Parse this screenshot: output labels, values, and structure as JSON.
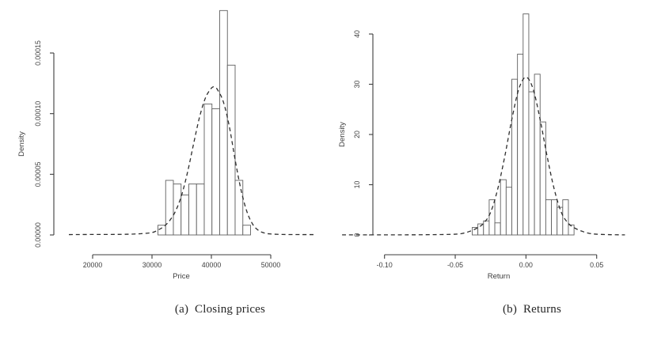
{
  "page": {
    "background": "#ffffff",
    "ink": "#3d3d3d"
  },
  "figure": {
    "caption_a": "(a)  Closing prices",
    "caption_b": "(b)  Returns"
  },
  "chart_data": [
    {
      "id": "closing-prices",
      "type": "bar",
      "subtype": "histogram-with-density-curve",
      "title": "",
      "xlabel": "Price",
      "ylabel": "Density",
      "xlim": [
        16000,
        57300
      ],
      "ylim": [
        0,
        0.00015
      ],
      "x_ticks": [
        20000,
        30000,
        40000,
        50000
      ],
      "x_tick_labels": [
        "20000",
        "30000",
        "40000",
        "50000"
      ],
      "y_ticks": [
        0,
        5e-05,
        0.0001,
        0.00015
      ],
      "y_tick_labels": [
        "0.00000",
        "0.00005",
        "0.00010",
        "0.00015"
      ],
      "grid": false,
      "legend": null,
      "histogram": {
        "bin_edges": [
          31000,
          32300,
          33600,
          34900,
          36200,
          37500,
          38800,
          40100,
          41400,
          42700,
          44000,
          45300,
          46600
        ],
        "densities": [
          8e-06,
          4.5e-05,
          4.2e-05,
          3.3e-05,
          4.2e-05,
          4.2e-05,
          0.000108,
          0.000104,
          0.000185,
          0.00014,
          4.5e-05,
          8e-06
        ],
        "bar_fill": "#ffffff",
        "bar_stroke": "#606060"
      },
      "density_curve": {
        "style": "dashed",
        "color": "#2e2e2e",
        "x": [
          16000,
          20000,
          25000,
          28000,
          30000,
          31000,
          32000,
          33000,
          34000,
          35000,
          36000,
          37000,
          38000,
          39000,
          40000,
          40500,
          41000,
          42000,
          43000,
          44000,
          45000,
          46000,
          47000,
          48000,
          49000,
          50000,
          52000,
          55000,
          57300
        ],
        "y": [
          3e-07,
          4e-07,
          5e-07,
          1e-06,
          2e-06,
          4e-06,
          7e-06,
          1.2e-05,
          2e-05,
          3.3e-05,
          5.2e-05,
          7.5e-05,
          9.7e-05,
          0.000113,
          0.000121,
          0.000122,
          0.00012,
          0.00011,
          9e-05,
          6.2e-05,
          3.7e-05,
          1.9e-05,
          8.5e-06,
          3.5e-06,
          1.5e-06,
          8e-07,
          4e-07,
          3e-07,
          3e-07
        ]
      }
    },
    {
      "id": "returns",
      "type": "bar",
      "subtype": "histogram-with-density-curve",
      "title": "",
      "xlabel": "Return",
      "ylabel": "Density",
      "xlim": [
        -0.13,
        0.07
      ],
      "ylim": [
        0,
        44
      ],
      "x_ticks": [
        -0.1,
        -0.05,
        0.0,
        0.05
      ],
      "x_tick_labels": [
        "-0.10",
        "-0.05",
        "0.00",
        "0.05"
      ],
      "y_ticks": [
        0,
        10,
        20,
        30,
        40
      ],
      "y_tick_labels": [
        "0",
        "10",
        "20",
        "30",
        "40"
      ],
      "grid": false,
      "legend": null,
      "histogram": {
        "bin_edges": [
          -0.038,
          -0.034,
          -0.03,
          -0.026,
          -0.022,
          -0.018,
          -0.014,
          -0.01,
          -0.006,
          -0.002,
          0.002,
          0.006,
          0.01,
          0.014,
          0.018,
          0.022,
          0.026,
          0.03,
          0.034
        ],
        "densities": [
          1.5,
          2.2,
          2.8,
          7,
          2.4,
          11,
          9.5,
          31,
          36,
          44,
          28.5,
          32,
          22.5,
          7,
          7,
          5.5,
          7,
          2
        ],
        "bar_fill": "#ffffff",
        "bar_stroke": "#606060"
      },
      "density_curve": {
        "style": "dashed",
        "color": "#2e2e2e",
        "x": [
          -0.13,
          -0.1,
          -0.08,
          -0.06,
          -0.05,
          -0.045,
          -0.04,
          -0.035,
          -0.03,
          -0.025,
          -0.02,
          -0.015,
          -0.01,
          -0.005,
          0,
          0.005,
          0.01,
          0.015,
          0.02,
          0.025,
          0.03,
          0.035,
          0.04,
          0.045,
          0.05,
          0.06,
          0.07
        ],
        "y": [
          0.02,
          0.02,
          0.03,
          0.08,
          0.15,
          0.3,
          0.7,
          1.3,
          2.3,
          4.5,
          9.1,
          15.6,
          23.0,
          29.1,
          31.4,
          29.1,
          23.0,
          15.6,
          9.1,
          4.5,
          2.3,
          1.3,
          0.7,
          0.3,
          0.15,
          0.05,
          0.02
        ]
      }
    }
  ]
}
